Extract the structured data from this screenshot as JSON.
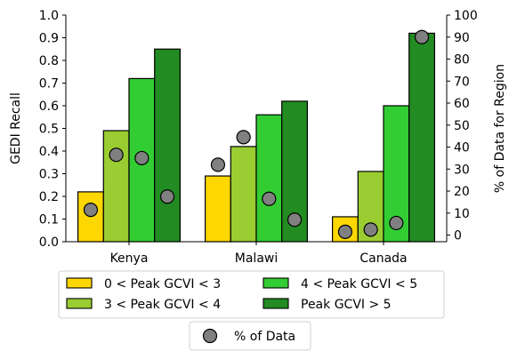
{
  "chart_data": {
    "type": "bar",
    "categories": [
      "Kenya",
      "Malawi",
      "Canada"
    ],
    "series": [
      {
        "name": "0 < Peak GCVI < 3",
        "color": "#FFD700",
        "values": [
          0.22,
          0.29,
          0.11
        ]
      },
      {
        "name": "3 < Peak GCVI < 4",
        "color": "#9ACD32",
        "values": [
          0.49,
          0.42,
          0.31
        ]
      },
      {
        "name": "4 < Peak GCVI < 5",
        "color": "#32CD32",
        "values": [
          0.72,
          0.56,
          0.6
        ]
      },
      {
        "name": "Peak GCVI > 5",
        "color": "#228B22",
        "values": [
          0.85,
          0.62,
          0.92
        ]
      }
    ],
    "percent_data": {
      "name": "% of Data",
      "color": "#808080",
      "values": [
        [
          11.5,
          36.5,
          35.0,
          17.5
        ],
        [
          32.0,
          44.5,
          16.5,
          7.0
        ],
        [
          1.5,
          2.5,
          5.5,
          90.0
        ]
      ]
    },
    "ylabel": "GEDI Recall",
    "ylim": [
      0.0,
      1.0
    ],
    "yticks": [
      "0.0",
      "0.1",
      "0.2",
      "0.3",
      "0.4",
      "0.5",
      "0.6",
      "0.7",
      "0.8",
      "0.9",
      "1.0"
    ],
    "y2label": "% of Data for Region",
    "y2lim": [
      -3,
      100
    ],
    "y2ticks": [
      "0",
      "10",
      "20",
      "30",
      "40",
      "50",
      "60",
      "70",
      "80",
      "90",
      "100"
    ],
    "legend_placement": "below"
  }
}
